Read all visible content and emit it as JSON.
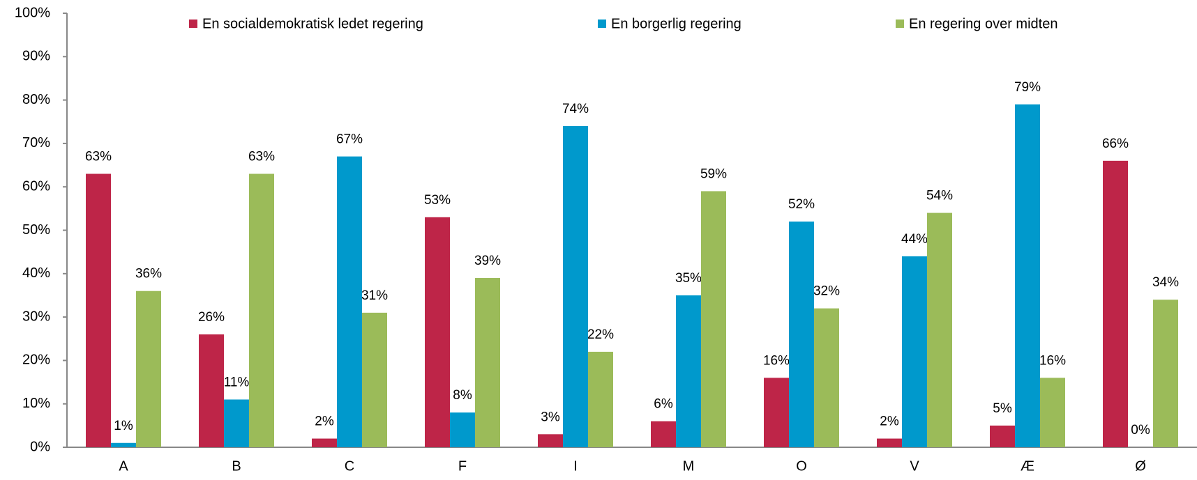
{
  "chart_data": {
    "type": "bar",
    "categories": [
      "A",
      "B",
      "C",
      "F",
      "I",
      "M",
      "O",
      "V",
      "Æ",
      "Ø"
    ],
    "series": [
      {
        "name": "En socialdemokratisk ledet regering",
        "color": "#be2548",
        "values": [
          63,
          26,
          2,
          53,
          3,
          6,
          16,
          2,
          5,
          66
        ],
        "value_labels": [
          "63%",
          "26%",
          "2%",
          "53%",
          "3%",
          "6%",
          "16%",
          "2%",
          "5%",
          "66%"
        ]
      },
      {
        "name": "En borgerlig regering",
        "color": "#0099cc",
        "values": [
          1,
          11,
          67,
          8,
          74,
          35,
          52,
          44,
          79,
          0
        ],
        "value_labels": [
          "1%",
          "11%",
          "67%",
          "8%",
          "74%",
          "35%",
          "52%",
          "44%",
          "79%",
          "0%"
        ]
      },
      {
        "name": "En regering over midten",
        "color": "#9bbb59",
        "values": [
          36,
          63,
          31,
          39,
          22,
          59,
          32,
          54,
          16,
          34
        ],
        "value_labels": [
          "36%",
          "63%",
          "31%",
          "39%",
          "22%",
          "59%",
          "32%",
          "54%",
          "16%",
          "34%"
        ]
      }
    ],
    "ylim": [
      0,
      100
    ],
    "yticks": [
      {
        "value": 0,
        "label": "0%"
      },
      {
        "value": 10,
        "label": "10%"
      },
      {
        "value": 20,
        "label": "20%"
      },
      {
        "value": 30,
        "label": "30%"
      },
      {
        "value": 40,
        "label": "40%"
      },
      {
        "value": 50,
        "label": "50%"
      },
      {
        "value": 60,
        "label": "60%"
      },
      {
        "value": 70,
        "label": "70%"
      },
      {
        "value": 80,
        "label": "80%"
      },
      {
        "value": 90,
        "label": "90%"
      },
      {
        "value": 100,
        "label": "100%"
      }
    ],
    "grid": false,
    "legend": "top"
  }
}
